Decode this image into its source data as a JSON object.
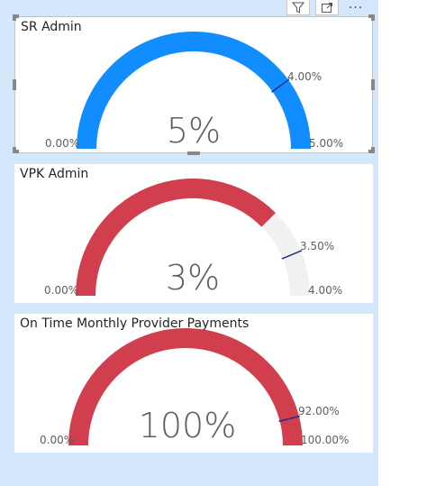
{
  "toolbar": {
    "filter_icon": "filter-icon",
    "focus_icon": "focus-mode-icon",
    "more_label": "···"
  },
  "colors": {
    "blue": "#118dff",
    "red": "#d13f4e",
    "track": "#f1f1f1",
    "target": "#1f2f8c"
  },
  "gauges": [
    {
      "title": "SR Admin",
      "value_label": "5%",
      "value": 0.05,
      "min_label": "0.00%",
      "max_label": "5.00%",
      "target_label": "4.00%",
      "min": 0,
      "max": 0.05,
      "target": 0.04,
      "color": "blue"
    },
    {
      "title": "VPK Admin",
      "value_label": "3%",
      "value": 0.03,
      "min_label": "0.00%",
      "max_label": "4.00%",
      "target_label": "3.50%",
      "min": 0,
      "max": 0.04,
      "target": 0.035,
      "color": "red"
    },
    {
      "title": "On Time Monthly Provider Payments",
      "value_label": "100%",
      "value": 1.0,
      "min_label": "0.00%",
      "max_label": "100.00%",
      "target_label": "92.00%",
      "min": 0,
      "max": 1.0,
      "target": 0.92,
      "color": "red"
    }
  ]
}
